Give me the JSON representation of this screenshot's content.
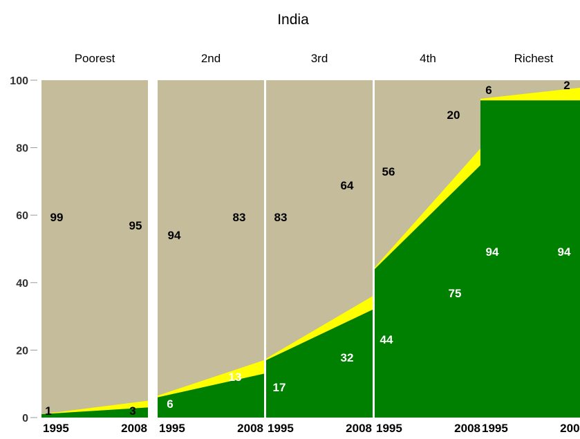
{
  "chart_data": {
    "type": "area",
    "title": "India",
    "subtitle": "",
    "xlabel": "",
    "ylabel": "",
    "ylim": [
      0,
      100
    ],
    "yticks": [
      "0",
      "20",
      "40",
      "60",
      "80",
      "100"
    ],
    "x": [
      "1995",
      "2008"
    ],
    "grid": false,
    "legend": "none",
    "colors": {
      "green": "#008000",
      "yellow": "#FFFF00",
      "tan": "#C4BC9A"
    },
    "panels": [
      {
        "label": "Poorest",
        "series": [
          {
            "values": [
              1,
              3
            ],
            "color": "green"
          },
          {
            "values": [
              0,
              2
            ],
            "color": "yellow"
          },
          {
            "values": [
              99,
              95
            ],
            "color": "tan"
          }
        ],
        "labels": {
          "green": [
            "1",
            "3"
          ],
          "tan": [
            "99",
            "95"
          ]
        }
      },
      {
        "label": "2nd",
        "series": [
          {
            "values": [
              6,
              13
            ],
            "color": "green"
          },
          {
            "values": [
              0.5,
              4
            ],
            "color": "yellow"
          },
          {
            "values": [
              94,
              83
            ],
            "color": "tan"
          }
        ],
        "labels": {
          "green": [
            "6",
            "13"
          ],
          "tan": [
            "94",
            "83"
          ]
        }
      },
      {
        "label": "3rd",
        "series": [
          {
            "values": [
              17,
              32
            ],
            "color": "green"
          },
          {
            "values": [
              0.5,
              4
            ],
            "color": "yellow"
          },
          {
            "values": [
              83,
              64
            ],
            "color": "tan"
          }
        ],
        "labels": {
          "green": [
            "17",
            "32"
          ],
          "tan": [
            "83",
            "64"
          ]
        }
      },
      {
        "label": "4th",
        "series": [
          {
            "values": [
              44,
              75
            ],
            "color": "green"
          },
          {
            "values": [
              0.5,
              5
            ],
            "color": "yellow"
          },
          {
            "values": [
              56,
              20
            ],
            "color": "tan"
          }
        ],
        "labels": {
          "green": [
            "44",
            "75"
          ],
          "tan": [
            "56",
            "20"
          ]
        }
      },
      {
        "label": "Richest",
        "series": [
          {
            "values": [
              94,
              94
            ],
            "color": "green"
          },
          {
            "values": [
              0.5,
              4
            ],
            "color": "yellow"
          },
          {
            "values": [
              6,
              2
            ],
            "color": "tan"
          }
        ],
        "labels": {
          "green": [
            "94",
            "94"
          ],
          "tan": [
            "6",
            "2"
          ]
        }
      }
    ]
  }
}
